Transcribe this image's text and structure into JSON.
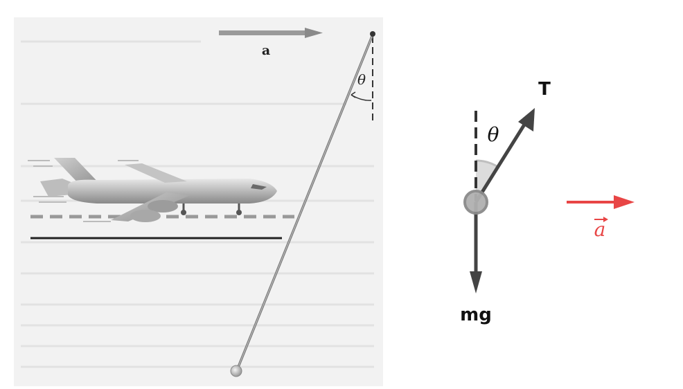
{
  "left_panel": {
    "acceleration_label": "a",
    "angle_label": "θ"
  },
  "right_panel": {
    "tension_label": "T",
    "angle_label": "θ",
    "weight_label": "mg",
    "acceleration_label": "a",
    "acceleration_color": "#e84545"
  }
}
